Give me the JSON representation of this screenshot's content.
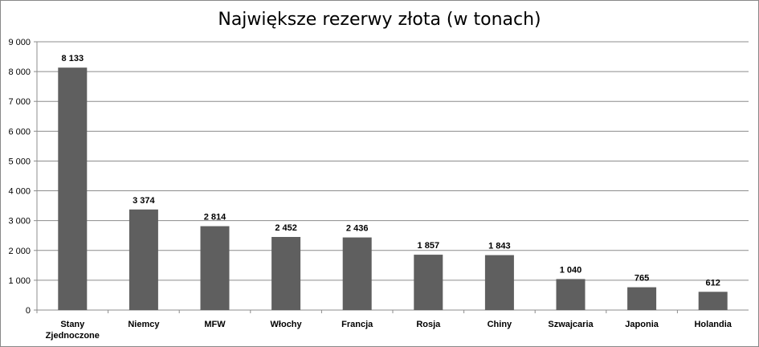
{
  "chart_data": {
    "type": "bar",
    "title": "Największe rezerwy złota (w tonach)",
    "xlabel": "",
    "ylabel": "",
    "categories": [
      [
        "Stany",
        "Zjednoczone"
      ],
      [
        "Niemcy"
      ],
      [
        "MFW"
      ],
      [
        "Włochy"
      ],
      [
        "Francja"
      ],
      [
        "Rosja"
      ],
      [
        "Chiny"
      ],
      [
        "Szwajcaria"
      ],
      [
        "Japonia"
      ],
      [
        "Holandia"
      ]
    ],
    "values": [
      8133,
      3374,
      2814,
      2452,
      2436,
      1857,
      1843,
      1040,
      765,
      612
    ],
    "data_labels": [
      "8 133",
      "3 374",
      "2 814",
      "2 452",
      "2 436",
      "1 857",
      "1 843",
      "1 040",
      "765",
      "612"
    ],
    "ylim": [
      0,
      9000
    ],
    "yticks": [
      0,
      1000,
      2000,
      3000,
      4000,
      5000,
      6000,
      7000,
      8000,
      9000
    ],
    "ytick_labels": [
      "0",
      "1 000",
      "2 000",
      "3 000",
      "4 000",
      "5 000",
      "6 000",
      "7 000",
      "8 000",
      "9 000"
    ],
    "grid": true,
    "legend": "none",
    "colors": {
      "bar": "#5f5f5f",
      "grid": "#8c8c8c",
      "axis": "#8c8c8c"
    }
  }
}
